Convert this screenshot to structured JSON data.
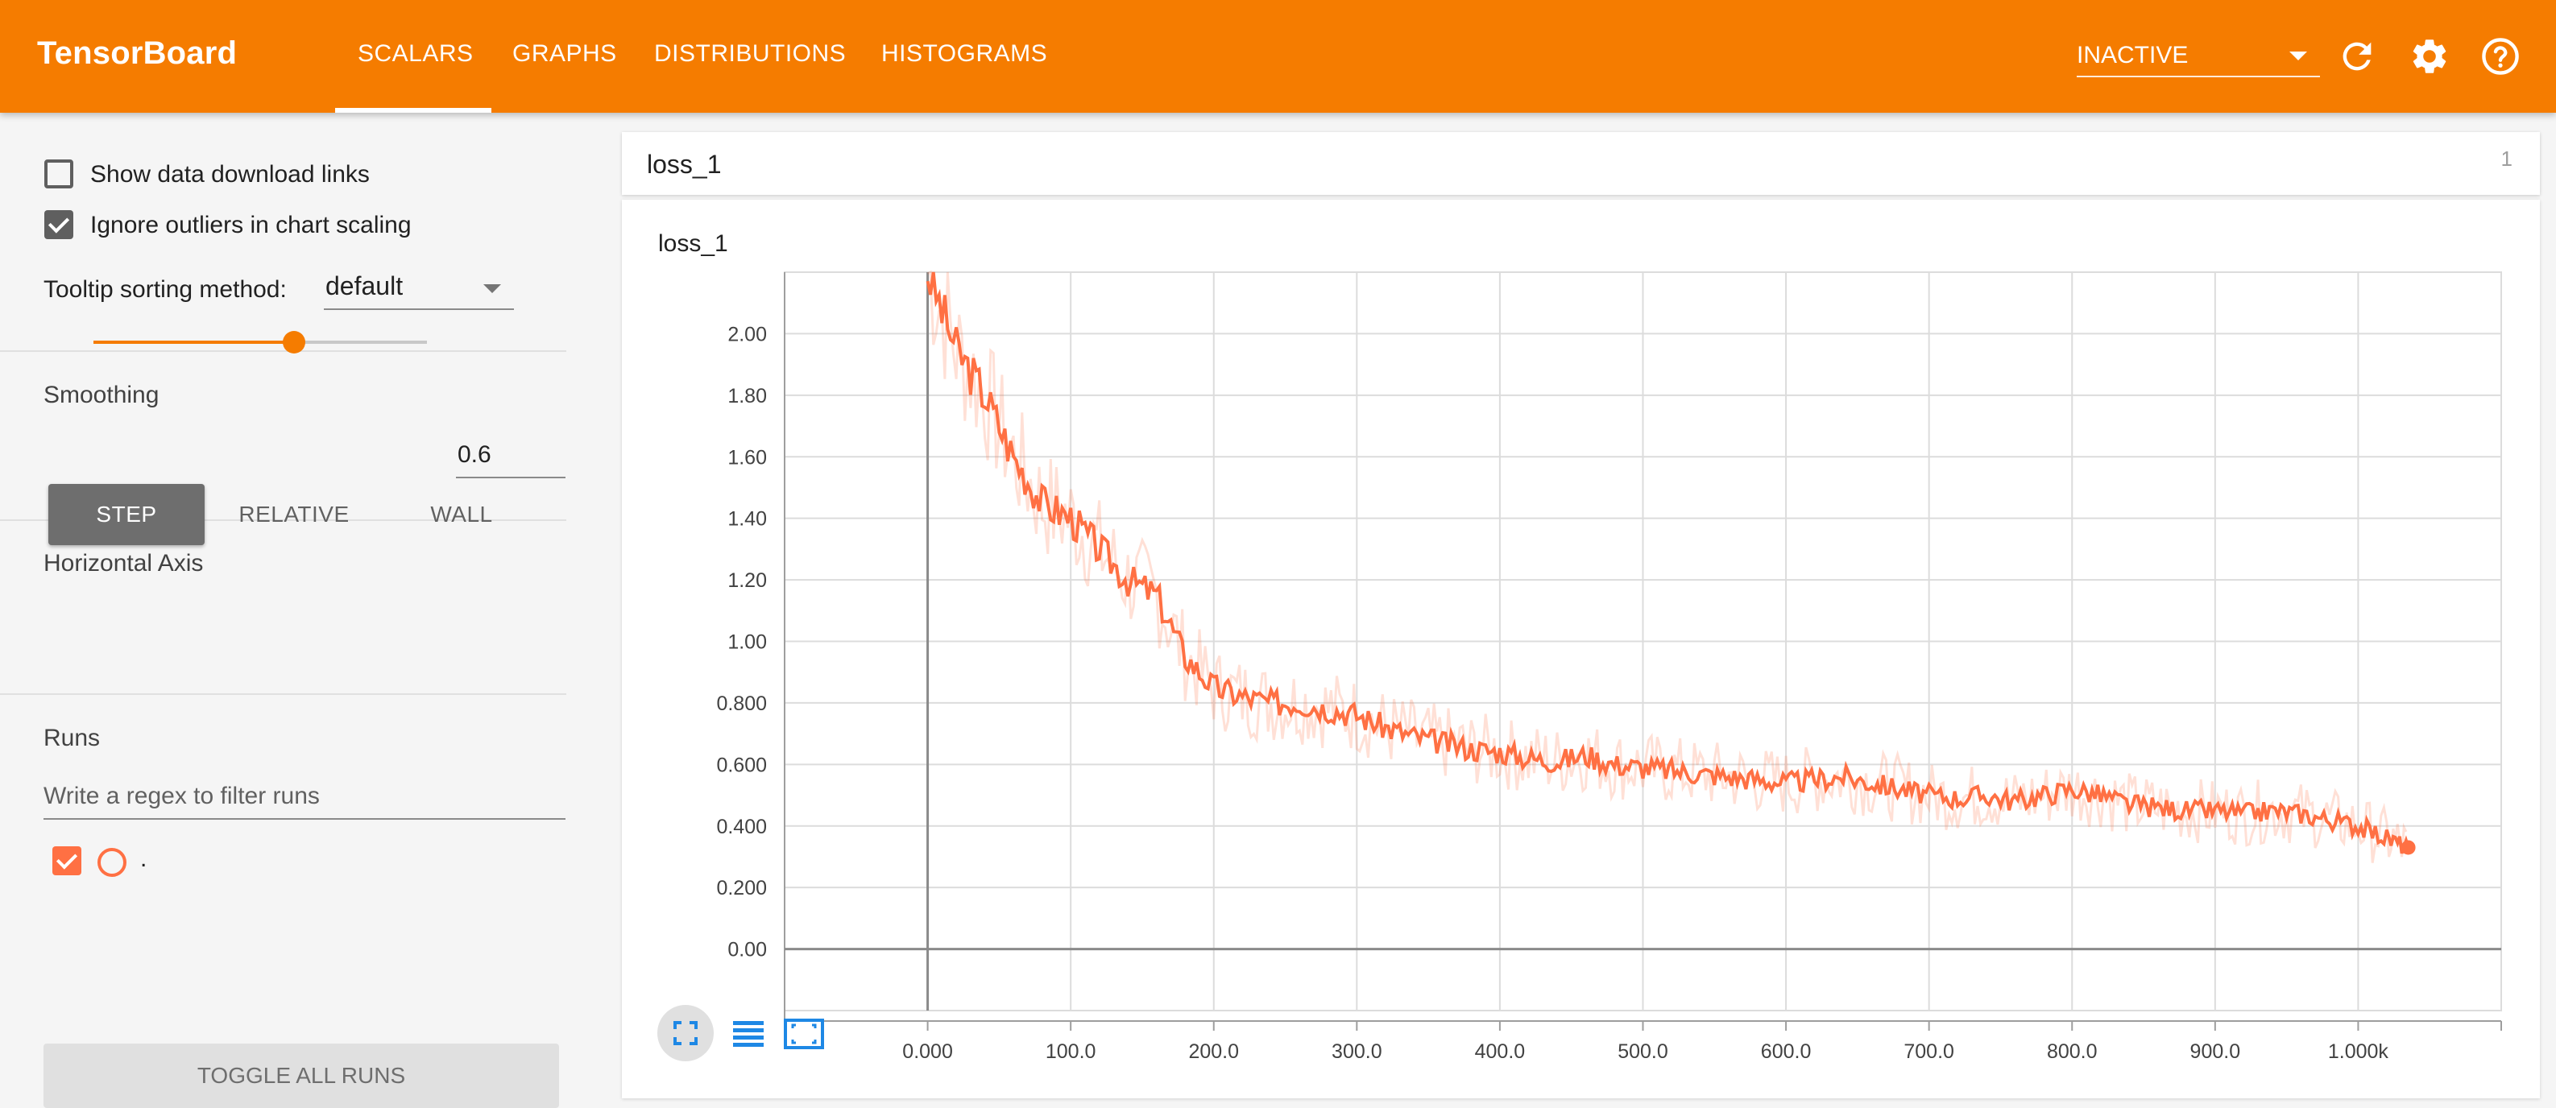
{
  "header": {
    "brand": "TensorBoard",
    "tabs": [
      {
        "label": "SCALARS",
        "active": true
      },
      {
        "label": "GRAPHS"
      },
      {
        "label": "DISTRIBUTIONS"
      },
      {
        "label": "HISTOGRAMS"
      }
    ],
    "run_state": "INACTIVE",
    "accent_color": "#f57c00"
  },
  "sidebar": {
    "show_download_links": {
      "label": "Show data download links",
      "checked": false
    },
    "ignore_outliers": {
      "label": "Ignore outliers in chart scaling",
      "checked": true
    },
    "tooltip_sorting": {
      "label": "Tooltip sorting method:",
      "value": "default"
    },
    "smoothing": {
      "label": "Smoothing",
      "value": "0.6",
      "level": 0.6
    },
    "horizontal_axis": {
      "label": "Horizontal Axis",
      "options": [
        "STEP",
        "RELATIVE",
        "WALL"
      ],
      "selected": "STEP"
    },
    "runs": {
      "label": "Runs",
      "filter_placeholder": "Write a regex to filter runs",
      "items": [
        {
          "name": ".",
          "checked": true,
          "color": "#ff7043"
        }
      ]
    },
    "toggle_all_label": "TOGGLE ALL RUNS"
  },
  "main": {
    "group": {
      "name": "loss_1",
      "count": "1"
    },
    "card_title": "loss_1"
  },
  "chart_data": {
    "type": "line",
    "title": "loss_1",
    "xlabel": "",
    "ylabel": "",
    "xlim": [
      -100,
      1100
    ],
    "ylim": [
      -0.2,
      2.2
    ],
    "x_ticks": [
      "0.000",
      "100.0",
      "200.0",
      "300.0",
      "400.0",
      "500.0",
      "600.0",
      "700.0",
      "800.0",
      "900.0",
      "1.000k"
    ],
    "x_tick_values": [
      0,
      100,
      200,
      300,
      400,
      500,
      600,
      700,
      800,
      900,
      1000
    ],
    "y_ticks": [
      "0.00",
      "0.200",
      "0.400",
      "0.600",
      "0.800",
      "1.00",
      "1.20",
      "1.40",
      "1.60",
      "1.80",
      "2.00"
    ],
    "y_tick_values": [
      0,
      0.2,
      0.4,
      0.6,
      0.8,
      1.0,
      1.2,
      1.4,
      1.6,
      1.8,
      2.0
    ],
    "grid": true,
    "series": [
      {
        "name": ".",
        "color": "#ff7043",
        "x": [
          0,
          20,
          40,
          60,
          80,
          100,
          120,
          140,
          160,
          180,
          200,
          220,
          240,
          260,
          280,
          300,
          320,
          340,
          360,
          380,
          400,
          420,
          440,
          460,
          480,
          500,
          520,
          540,
          560,
          580,
          600,
          620,
          640,
          660,
          680,
          700,
          720,
          740,
          760,
          780,
          800,
          820,
          840,
          860,
          880,
          900,
          920,
          940,
          960,
          980,
          1000,
          1020,
          1035
        ],
        "y": [
          2.2,
          1.95,
          1.8,
          1.6,
          1.45,
          1.4,
          1.3,
          1.2,
          1.15,
          0.95,
          0.85,
          0.82,
          0.8,
          0.8,
          0.78,
          0.76,
          0.72,
          0.69,
          0.67,
          0.65,
          0.64,
          0.62,
          0.61,
          0.63,
          0.6,
          0.59,
          0.58,
          0.57,
          0.56,
          0.55,
          0.54,
          0.55,
          0.56,
          0.54,
          0.52,
          0.5,
          0.49,
          0.5,
          0.48,
          0.5,
          0.52,
          0.5,
          0.47,
          0.46,
          0.45,
          0.45,
          0.44,
          0.45,
          0.44,
          0.42,
          0.4,
          0.36,
          0.33
        ]
      }
    ]
  }
}
